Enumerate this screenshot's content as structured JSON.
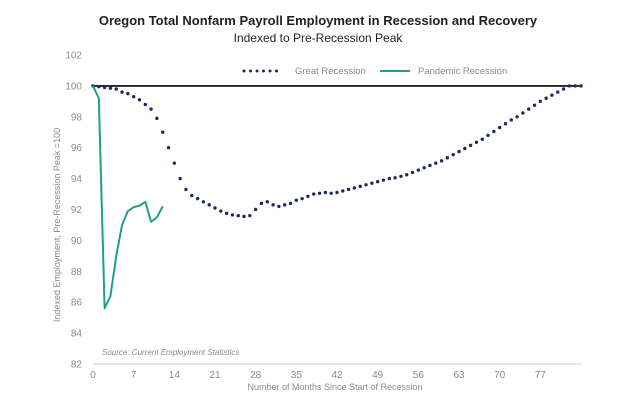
{
  "chart_data": {
    "type": "line",
    "title": "Oregon Total Nonfarm Payroll Employment in Recession and Recovery",
    "subtitle": "Indexed to Pre-Recession Peak",
    "xlabel": "Number of Months Since Start of Recession",
    "ylabel": "Indexed Employment, Pre-Recession Peak =100",
    "xlim": [
      0,
      84
    ],
    "ylim": [
      82,
      102
    ],
    "xticks": [
      0,
      7,
      14,
      21,
      28,
      35,
      42,
      49,
      56,
      63,
      70,
      77
    ],
    "yticks": [
      82,
      84,
      86,
      88,
      90,
      92,
      94,
      96,
      98,
      100,
      102
    ],
    "reference_line": 100,
    "legend_position": "top",
    "source": "Source: Current Employment Statistics",
    "series": [
      {
        "name": "Great Recession",
        "style": "dotted",
        "color": "#1b2a5e",
        "x": [
          0,
          1,
          2,
          3,
          4,
          5,
          6,
          7,
          8,
          9,
          10,
          11,
          12,
          13,
          14,
          15,
          16,
          17,
          18,
          19,
          20,
          21,
          22,
          23,
          24,
          25,
          26,
          27,
          28,
          29,
          30,
          31,
          32,
          33,
          34,
          35,
          36,
          37,
          38,
          39,
          40,
          41,
          42,
          43,
          44,
          45,
          46,
          47,
          48,
          49,
          50,
          51,
          52,
          53,
          54,
          55,
          56,
          57,
          58,
          59,
          60,
          61,
          62,
          63,
          64,
          65,
          66,
          67,
          68,
          69,
          70,
          71,
          72,
          73,
          74,
          75,
          76,
          77,
          78,
          79,
          80,
          81,
          82,
          83,
          84
        ],
        "values": [
          100,
          99.95,
          99.9,
          99.85,
          99.8,
          99.6,
          99.5,
          99.3,
          99.1,
          98.8,
          98.5,
          97.9,
          97.0,
          96.0,
          95.0,
          94.0,
          93.3,
          92.9,
          92.7,
          92.5,
          92.3,
          92.1,
          91.9,
          91.75,
          91.65,
          91.6,
          91.55,
          91.6,
          92.0,
          92.4,
          92.5,
          92.3,
          92.2,
          92.3,
          92.4,
          92.6,
          92.7,
          92.85,
          93.0,
          93.05,
          93.1,
          93.05,
          93.1,
          93.2,
          93.3,
          93.4,
          93.5,
          93.6,
          93.7,
          93.8,
          93.9,
          94.0,
          94.05,
          94.15,
          94.25,
          94.4,
          94.55,
          94.7,
          94.85,
          95.0,
          95.15,
          95.35,
          95.55,
          95.75,
          95.95,
          96.15,
          96.35,
          96.55,
          96.8,
          97.05,
          97.3,
          97.55,
          97.8,
          98.0,
          98.25,
          98.5,
          98.75,
          99.0,
          99.2,
          99.4,
          99.6,
          99.8,
          100.0,
          100.0,
          100.0
        ]
      },
      {
        "name": "Pandemic Recession",
        "style": "solid",
        "color": "#1f9e8e",
        "x": [
          0,
          1,
          2,
          3,
          4,
          5,
          6,
          7,
          8,
          9,
          10,
          11,
          12
        ],
        "values": [
          100,
          99.2,
          85.6,
          86.4,
          89.0,
          91.0,
          91.9,
          92.15,
          92.25,
          92.5,
          91.2,
          91.5,
          92.2
        ]
      }
    ]
  }
}
